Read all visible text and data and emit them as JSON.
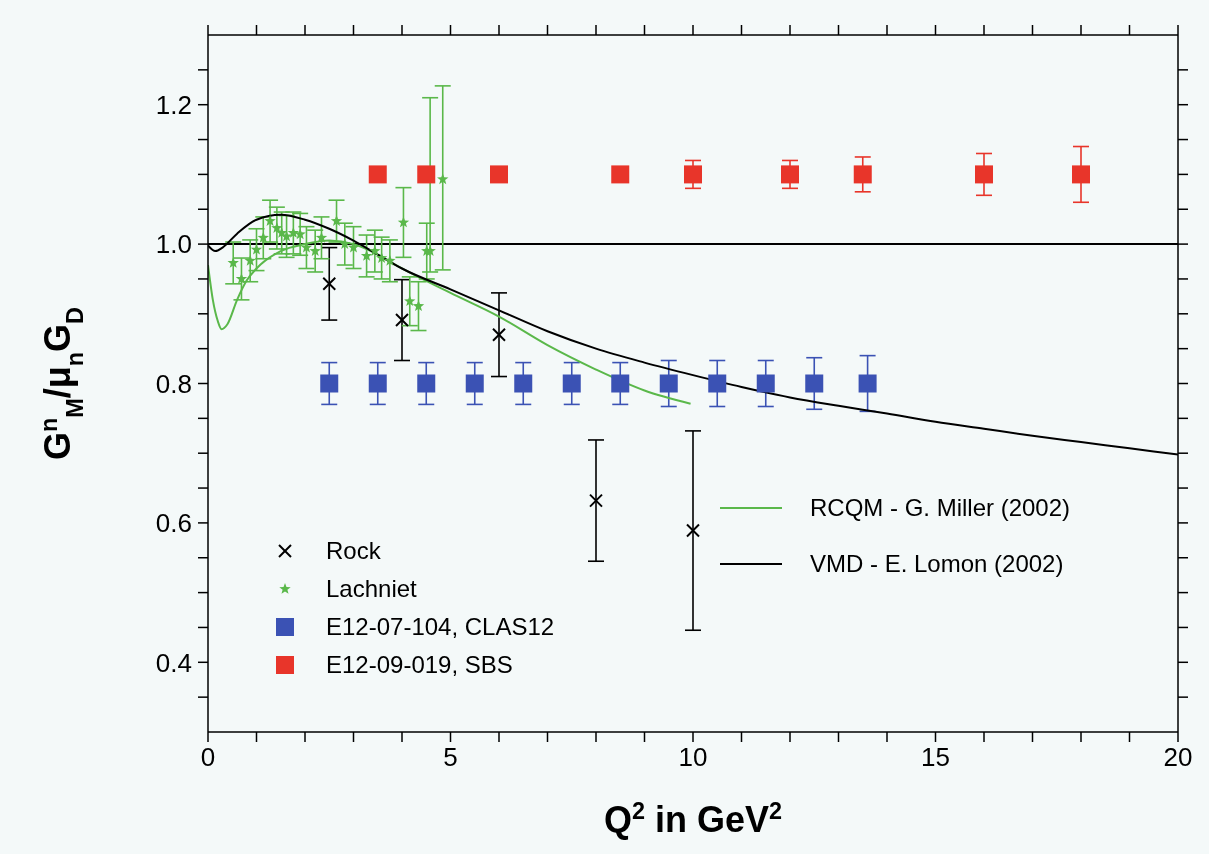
{
  "chart_data": {
    "type": "scatter",
    "xlabel": "Q$^{2}$ in GeV$^{2}$",
    "ylabel": "G$^{n}$$_{M}$/μ$_{n}$G$_{D}$",
    "xlim": [
      0,
      20
    ],
    "ylim": [
      0.3,
      1.3
    ],
    "xticks": [
      0,
      {
        "value": 1,
        "label": null
      },
      {
        "value": 2,
        "label": null
      },
      {
        "value": 3,
        "label": null
      },
      {
        "value": 4,
        "label": null
      },
      5,
      {
        "value": 6,
        "label": null
      },
      {
        "value": 7,
        "label": null
      },
      {
        "value": 8,
        "label": null
      },
      {
        "value": 9,
        "label": null
      },
      10,
      {
        "value": 11,
        "label": null
      },
      {
        "value": 12,
        "label": null
      },
      {
        "value": 13,
        "label": null
      },
      {
        "value": 14,
        "label": null
      },
      15,
      {
        "value": 16,
        "label": null
      },
      {
        "value": 17,
        "label": null
      },
      {
        "value": 18,
        "label": null
      },
      {
        "value": 19,
        "label": null
      },
      20
    ],
    "yticks": [
      {
        "value": 0.35,
        "label": null
      },
      {
        "value": 0.4,
        "label": "0.4"
      },
      {
        "value": 0.45,
        "label": null
      },
      {
        "value": 0.5,
        "label": null
      },
      {
        "value": 0.55,
        "label": null
      },
      {
        "value": 0.6,
        "label": "0.6"
      },
      {
        "value": 0.65,
        "label": null
      },
      {
        "value": 0.7,
        "label": null
      },
      {
        "value": 0.75,
        "label": null
      },
      {
        "value": 0.8,
        "label": "0.8"
      },
      {
        "value": 0.85,
        "label": null
      },
      {
        "value": 0.9,
        "label": null
      },
      {
        "value": 0.95,
        "label": null
      },
      {
        "value": 1.0,
        "label": "1.0"
      },
      {
        "value": 1.05,
        "label": null
      },
      {
        "value": 1.1,
        "label": null
      },
      {
        "value": 1.15,
        "label": null
      },
      {
        "value": 1.2,
        "label": "1.2"
      },
      {
        "value": 1.25,
        "label": null
      }
    ],
    "grid": false,
    "legend": "bottom",
    "ref_lines": [
      {
        "axis": "y",
        "value": 1.0,
        "color": "#000000"
      }
    ],
    "series": [
      {
        "name": "Rock",
        "marker": "cross",
        "color": "#000000",
        "x": [
          2.5,
          4.0,
          6.0,
          8.0,
          10.0
        ],
        "values": [
          0.943,
          0.891,
          0.87,
          0.632,
          0.589
        ],
        "errors": [
          0.052,
          0.058,
          0.06,
          0.087,
          0.143
        ]
      },
      {
        "name": "Lachniet",
        "marker": "star",
        "color": "#5ab84a",
        "x": [
          0.52,
          0.69,
          0.87,
          1.0,
          1.14,
          1.28,
          1.42,
          1.52,
          1.62,
          1.76,
          1.9,
          2.03,
          2.21,
          2.34,
          2.65,
          2.82,
          3.0,
          3.27,
          3.44,
          3.58,
          3.75,
          4.03,
          4.16,
          4.34,
          4.51,
          4.58,
          4.84
        ],
        "values": [
          0.973,
          0.95,
          0.976,
          0.992,
          1.009,
          1.033,
          1.023,
          1.016,
          1.011,
          1.016,
          1.014,
          0.995,
          0.99,
          1.009,
          1.033,
          1.0,
          0.995,
          0.983,
          0.99,
          0.98,
          0.976,
          1.031,
          0.918,
          0.911,
          0.99,
          0.99,
          1.093
        ],
        "errors": [
          0.03,
          0.03,
          0.03,
          0.03,
          0.03,
          0.03,
          0.03,
          0.03,
          0.03,
          0.03,
          0.03,
          0.03,
          0.03,
          0.03,
          0.03,
          0.03,
          0.03,
          0.03,
          0.03,
          0.03,
          0.03,
          0.05,
          0.035,
          0.035,
          0.04,
          [
            0.96,
            1.21
          ],
          [
            0.963,
            1.227
          ]
        ]
      },
      {
        "name": "E12-07-104, CLAS12",
        "marker": "square",
        "color": "#3b52b4",
        "x": [
          2.5,
          3.5,
          4.5,
          5.5,
          6.5,
          7.5,
          8.5,
          9.5,
          10.5,
          11.5,
          12.5,
          13.6
        ],
        "values": [
          0.8,
          0.8,
          0.8,
          0.8,
          0.8,
          0.8,
          0.8,
          0.8,
          0.8,
          0.8,
          0.8,
          0.8
        ],
        "errors": [
          0.03,
          0.03,
          0.03,
          0.03,
          0.03,
          0.03,
          0.03,
          0.033,
          0.033,
          0.033,
          0.037,
          0.04
        ]
      },
      {
        "name": "E12-09-019, SBS",
        "marker": "square",
        "color": "#e8352a",
        "x": [
          3.5,
          4.5,
          6.0,
          8.5,
          10.0,
          12.0,
          13.5,
          16.0,
          18.0
        ],
        "values": [
          1.1,
          1.1,
          1.1,
          1.1,
          1.1,
          1.1,
          1.1,
          1.1,
          1.1
        ],
        "errors": [
          null,
          null,
          null,
          0.01,
          0.02,
          0.02,
          0.025,
          0.03,
          0.04
        ]
      },
      {
        "name": "RCQM - G. Miller (2002)",
        "type": "line",
        "marker": "none",
        "color": "#5ab84a",
        "x": [
          0,
          0.1,
          0.2,
          0.28,
          0.4,
          0.6,
          0.8,
          1.0,
          1.5,
          2.0,
          2.5,
          3.0,
          3.5,
          4.0,
          5.0,
          6.0,
          7.0,
          8.0,
          9.0,
          9.95
        ],
        "values": [
          0.97,
          0.92,
          0.89,
          0.878,
          0.885,
          0.92,
          0.948,
          0.965,
          0.99,
          1.0,
          1.005,
          1.0,
          0.985,
          0.965,
          0.93,
          0.896,
          0.855,
          0.82,
          0.79,
          0.771
        ]
      },
      {
        "name": "VMD - E. Lomon (2002)",
        "type": "line",
        "marker": "none",
        "color": "#000000",
        "x": [
          0,
          0.15,
          0.3,
          0.6,
          1.0,
          1.5,
          2.0,
          2.5,
          3.0,
          3.5,
          4.0,
          5.0,
          6.0,
          7.0,
          8.0,
          9.0,
          10.0,
          11.0,
          12.0,
          13.0,
          14.0,
          15.0,
          16.0,
          17.0,
          18.0,
          19.0,
          20.0
        ],
        "values": [
          0.998,
          0.99,
          0.995,
          1.015,
          1.035,
          1.042,
          1.035,
          1.022,
          1.005,
          0.985,
          0.965,
          0.935,
          0.905,
          0.875,
          0.85,
          0.83,
          0.812,
          0.795,
          0.78,
          0.768,
          0.757,
          0.745,
          0.735,
          0.725,
          0.716,
          0.707,
          0.698
        ]
      }
    ]
  }
}
